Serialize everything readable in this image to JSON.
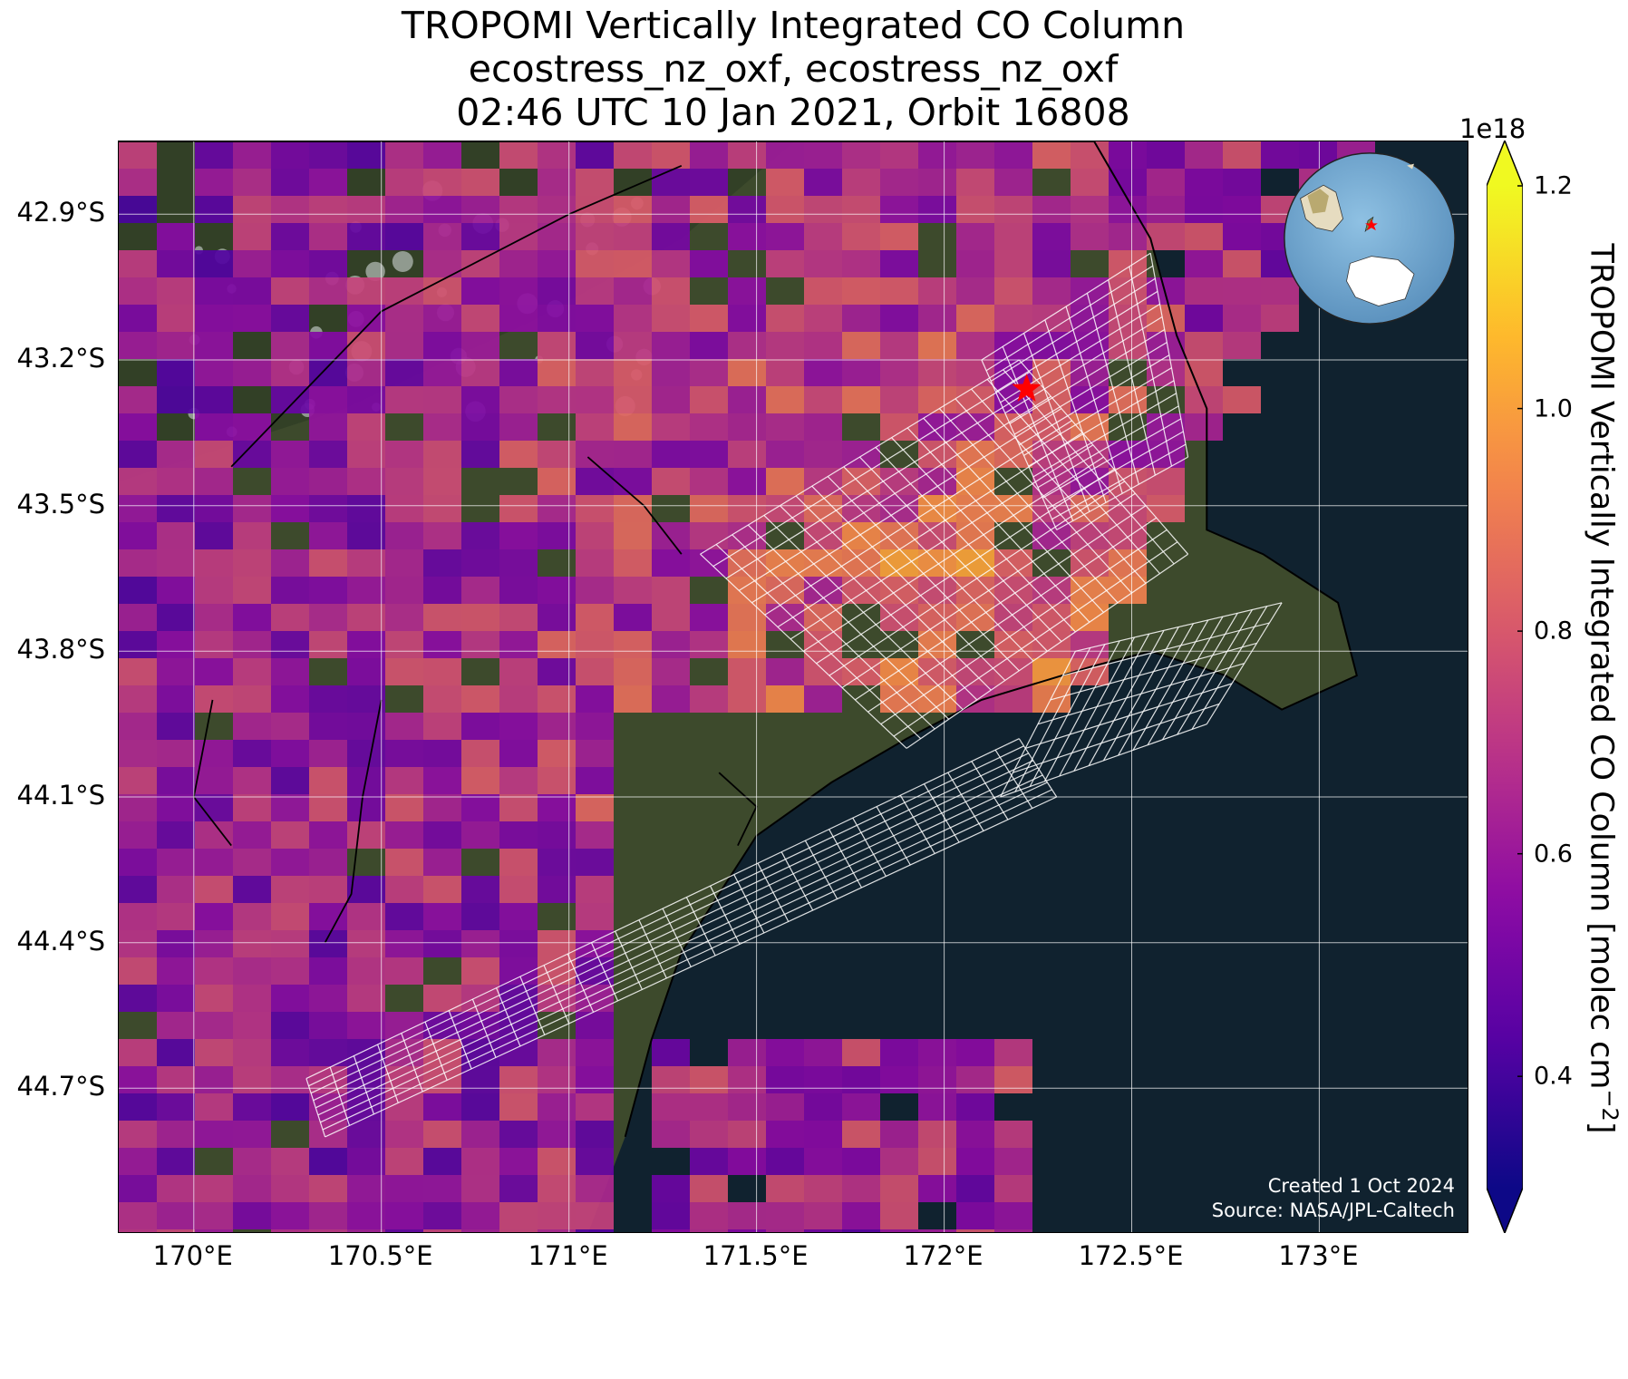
{
  "title": {
    "line1": "TROPOMI Vertically Integrated CO Column",
    "line2": "ecostress_nz_oxf, ecostress_nz_oxf",
    "line3": "02:46 UTC 10 Jan 2021, Orbit 16808"
  },
  "credit": {
    "created": "Created 1 Oct 2024",
    "source": "Source: NASA/JPL-Caltech"
  },
  "map": {
    "lon_range": [
      169.8,
      173.4
    ],
    "lat_range": [
      -45.0,
      -42.75
    ],
    "target_marker": {
      "lon": 172.22,
      "lat": -43.26,
      "color": "#ff0000",
      "icon": "star-icon"
    },
    "x_ticks": [
      {
        "value": 170.0,
        "label": "170°E"
      },
      {
        "value": 170.5,
        "label": "170.5°E"
      },
      {
        "value": 171.0,
        "label": "171°E"
      },
      {
        "value": 171.5,
        "label": "171.5°E"
      },
      {
        "value": 172.0,
        "label": "172°E"
      },
      {
        "value": 172.5,
        "label": "172.5°E"
      },
      {
        "value": 173.0,
        "label": "173°E"
      }
    ],
    "y_ticks": [
      {
        "value": -42.9,
        "label": "42.9°S"
      },
      {
        "value": -43.2,
        "label": "43.2°S"
      },
      {
        "value": -43.5,
        "label": "43.5°S"
      },
      {
        "value": -43.8,
        "label": "43.8°S"
      },
      {
        "value": -44.1,
        "label": "44.1°S"
      },
      {
        "value": -44.4,
        "label": "44.4°S"
      },
      {
        "value": -44.7,
        "label": "44.7°S"
      }
    ],
    "grid": true,
    "ocean_color": "#10222f",
    "land_color": "#3d4a2c"
  },
  "colorbar": {
    "label": "TROPOMI Vertically Integrated CO Column [molec cm",
    "label_exp": "−2",
    "label_close": "]",
    "exponent": "1e18",
    "range": [
      0.3,
      1.2
    ],
    "colormap": "plasma",
    "ticks": [
      {
        "value": 0.4,
        "label": "0.4"
      },
      {
        "value": 0.6,
        "label": "0.6"
      },
      {
        "value": 0.8,
        "label": "0.8"
      },
      {
        "value": 1.0,
        "label": "1.0"
      },
      {
        "value": 1.2,
        "label": "1.2"
      }
    ],
    "extend": "both"
  },
  "inset_globe": {
    "icon": "globe-icon",
    "marker_color": "#ff0000"
  }
}
